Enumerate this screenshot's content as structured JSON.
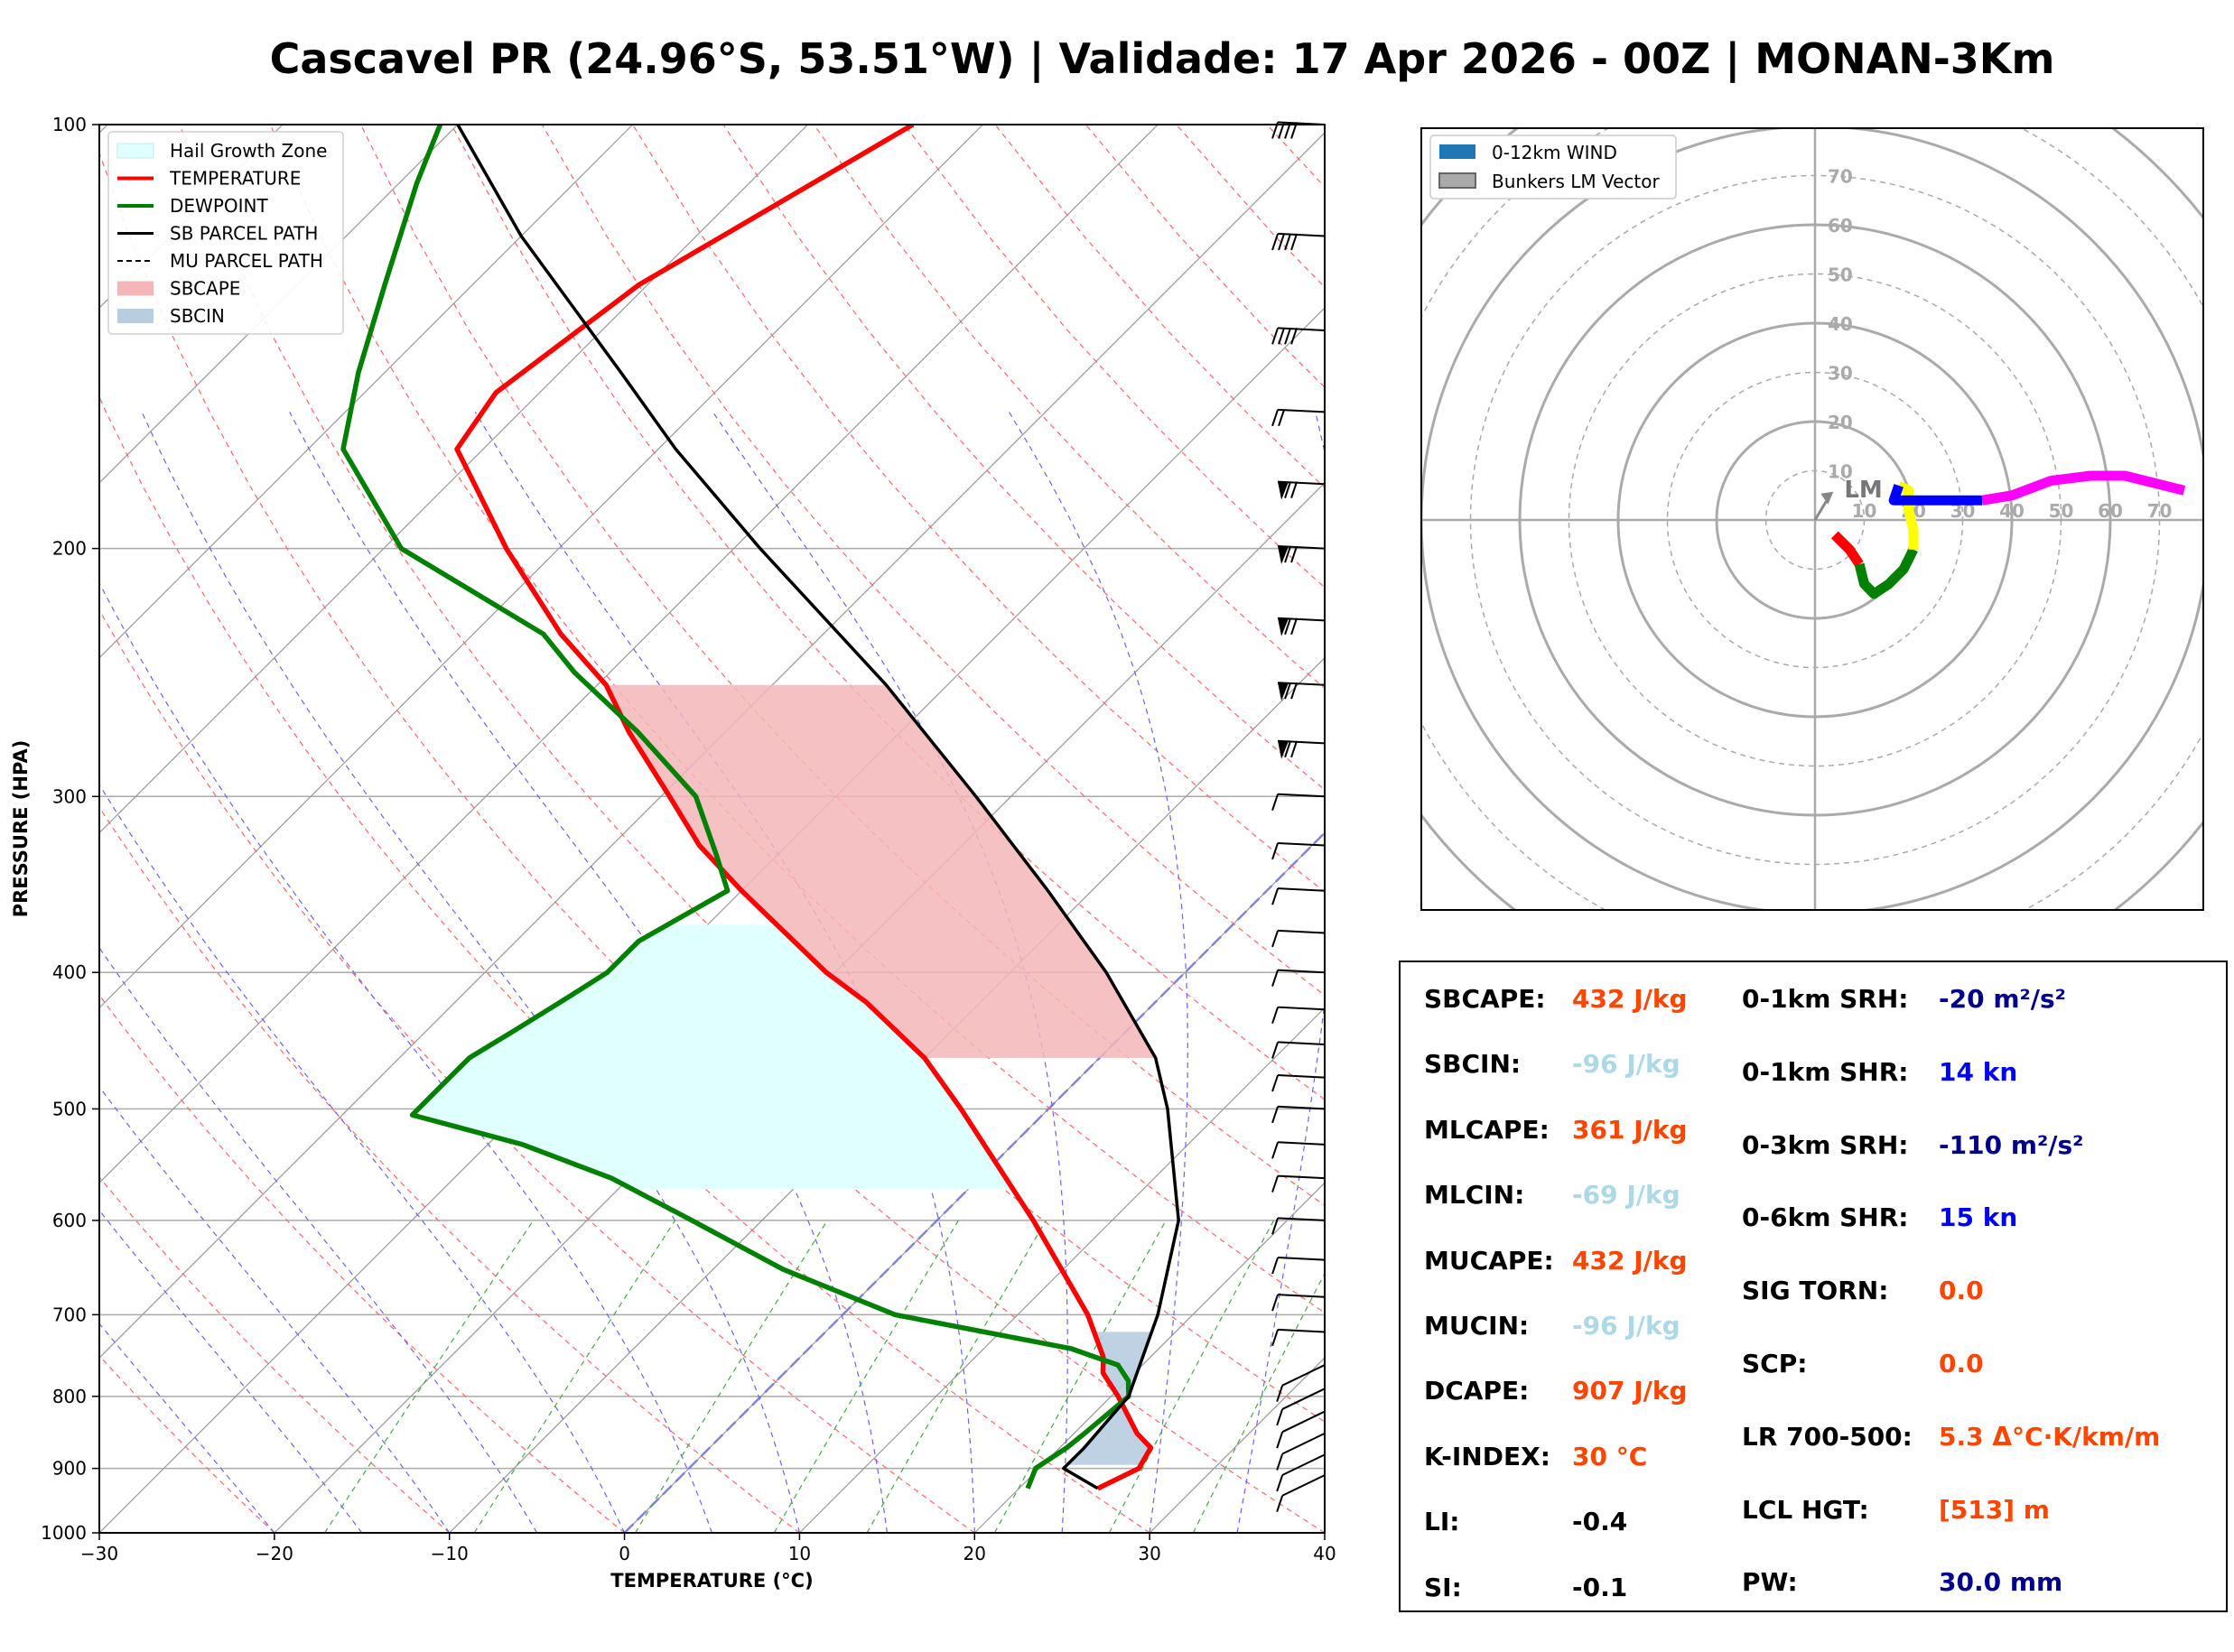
{
  "title": "Cascavel PR (24.96°S, 53.51°W) | Validade: 17 Apr 2026 - 00Z | MONAN-3Km",
  "colors": {
    "temperature": "#ff0000",
    "dewpoint": "#008000",
    "parcel": "#000000",
    "sbcape_fill": "#f4b6b8",
    "sbcin_fill": "#b7cde0",
    "hail_fill": "#e0ffff",
    "label_red": "#ff4500",
    "label_lightblue": "#add8e6",
    "label_navy": "#00008b",
    "label_blue": "#0000ff"
  },
  "chart_data": [
    {
      "type": "line",
      "chart": "skew-t log-p",
      "xlabel": "TEMPERATURE (°C)",
      "ylabel": "PRESSURE (HPA)",
      "xlim": [
        -30,
        40
      ],
      "ylim": [
        1000,
        100
      ],
      "x_ticks": [
        -30,
        -20,
        -10,
        0,
        10,
        20,
        30,
        40
      ],
      "x_tick_labels": [
        "−30",
        "−20",
        "−10",
        "0",
        "10",
        "20",
        "30",
        "40"
      ],
      "y_ticks": [
        1000,
        900,
        800,
        700,
        600,
        500,
        400,
        300,
        200,
        100
      ],
      "legend": {
        "placement": "top-left",
        "entries": [
          "Hail Growth Zone",
          "TEMPERATURE",
          "DEWPOINT",
          "SB PARCEL PATH",
          "MU PARCEL PATH",
          "SBCAPE",
          "SBCIN"
        ]
      },
      "series": [
        {
          "name": "TEMPERATURE",
          "points": [
            [
              930,
              24.5
            ],
            [
              900,
              25.7
            ],
            [
              870,
              25.2
            ],
            [
              850,
              23.6
            ],
            [
              800,
              20.4
            ],
            [
              770,
              18.2
            ],
            [
              750,
              17.3
            ],
            [
              700,
              14.0
            ],
            [
              600,
              5.5
            ],
            [
              500,
              -5.0
            ],
            [
              460,
              -10.0
            ],
            [
              420,
              -16.5
            ],
            [
              400,
              -20.5
            ],
            [
              350,
              -30.0
            ],
            [
              325,
              -35.0
            ],
            [
              300,
              -39.5
            ],
            [
              270,
              -45.5
            ],
            [
              250,
              -49.5
            ],
            [
              230,
              -55.0
            ],
            [
              200,
              -63.0
            ],
            [
              180,
              -68.5
            ],
            [
              170,
              -71.5
            ],
            [
              155,
              -72.5
            ],
            [
              130,
              -70.5
            ],
            [
              120,
              -68.5
            ],
            [
              100,
              -64.0
            ]
          ]
        },
        {
          "name": "DEWPOINT",
          "points": [
            [
              930,
              20.5
            ],
            [
              900,
              19.8
            ],
            [
              870,
              20.4
            ],
            [
              850,
              20.6
            ],
            [
              800,
              21.0
            ],
            [
              780,
              20.1
            ],
            [
              760,
              18.6
            ],
            [
              740,
              15.0
            ],
            [
              700,
              3.0
            ],
            [
              650,
              -6.0
            ],
            [
              600,
              -14.0
            ],
            [
              560,
              -21.0
            ],
            [
              530,
              -28.0
            ],
            [
              505,
              -36.0
            ],
            [
              480,
              -36.0
            ],
            [
              460,
              -36.0
            ],
            [
              440,
              -35.0
            ],
            [
              420,
              -34.0
            ],
            [
              400,
              -33.0
            ],
            [
              380,
              -33.0
            ],
            [
              350,
              -30.8
            ],
            [
              330,
              -33.5
            ],
            [
              300,
              -38.0
            ],
            [
              270,
              -45.0
            ],
            [
              245,
              -52.0
            ],
            [
              230,
              -56.0
            ],
            [
              200,
              -69.0
            ],
            [
              170,
              -78.0
            ],
            [
              150,
              -81.5
            ],
            [
              130,
              -85.0
            ],
            [
              110,
              -89.0
            ],
            [
              100,
              -91.0
            ]
          ]
        },
        {
          "name": "SB PARCEL PATH",
          "points": [
            [
              930,
              24.5
            ],
            [
              900,
              21.4
            ],
            [
              870,
              21.4
            ],
            [
              800,
              21.0
            ],
            [
              700,
              18.0
            ],
            [
              600,
              13.8
            ],
            [
              500,
              6.8
            ],
            [
              460,
              3.2
            ],
            [
              400,
              -4.5
            ],
            [
              350,
              -12.5
            ],
            [
              300,
              -22.0
            ],
            [
              250,
              -33.5
            ],
            [
              200,
              -48.5
            ],
            [
              170,
              -59.0
            ],
            [
              150,
              -66.5
            ],
            [
              120,
              -80.0
            ],
            [
              100,
              -90.0
            ]
          ]
        }
      ],
      "shaded_regions": [
        "Hail Growth Zone",
        "SBCAPE",
        "SBCIN"
      ],
      "wind_barbs": "right-edge column"
    },
    {
      "type": "line",
      "chart": "hodograph",
      "range_ring_labels": [
        "10",
        "20",
        "30",
        "40",
        "50",
        "60",
        "70"
      ],
      "legend": {
        "placement": "top-left",
        "entries": [
          "0-12km WIND",
          "Bunkers LM Vector"
        ]
      },
      "annotation": "LM",
      "bunkers_lm": [
        3,
        5
      ],
      "segments": [
        {
          "color": "#ff0000",
          "points": [
            [
              4,
              -3
            ],
            [
              7,
              -6
            ],
            [
              9,
              -9
            ]
          ]
        },
        {
          "color": "#008000",
          "points": [
            [
              9,
              -9
            ],
            [
              10,
              -13
            ],
            [
              12,
              -15
            ],
            [
              15,
              -13
            ],
            [
              18,
              -10
            ],
            [
              20,
              -6
            ]
          ]
        },
        {
          "color": "#ffff00",
          "points": [
            [
              20,
              -6
            ],
            [
              20,
              -2
            ],
            [
              19,
              2
            ],
            [
              19,
              6
            ],
            [
              17,
              7
            ]
          ]
        },
        {
          "color": "#0000ff",
          "points": [
            [
              17,
              7
            ],
            [
              16,
              4
            ],
            [
              20,
              4
            ],
            [
              26,
              4
            ],
            [
              30,
              4
            ],
            [
              34,
              4
            ]
          ]
        },
        {
          "color": "#ff00ff",
          "points": [
            [
              34,
              4
            ],
            [
              40,
              5
            ],
            [
              48,
              8
            ],
            [
              56,
              9
            ],
            [
              63,
              9
            ],
            [
              75,
              6
            ]
          ]
        }
      ]
    }
  ],
  "indices": {
    "left": [
      {
        "label": "SBCAPE:",
        "value": "432 J/kg",
        "color": "#ff4500"
      },
      {
        "label": "SBCIN:",
        "value": "-96 J/kg",
        "color": "#add8e6"
      },
      {
        "label": "MLCAPE:",
        "value": "361 J/kg",
        "color": "#ff4500"
      },
      {
        "label": "MLCIN:",
        "value": "-69 J/kg",
        "color": "#add8e6"
      },
      {
        "label": "MUCAPE:",
        "value": "432 J/kg",
        "color": "#ff4500"
      },
      {
        "label": "MUCIN:",
        "value": "-96 J/kg",
        "color": "#add8e6"
      },
      {
        "label": "DCAPE:",
        "value": "907 J/kg",
        "color": "#ff4500"
      },
      {
        "label": "K-INDEX:",
        "value": "30 °C",
        "color": "#ff4500"
      },
      {
        "label": "LI:",
        "value": "-0.4",
        "color": "#000000"
      },
      {
        "label": "SI:",
        "value": "-0.1",
        "color": "#000000"
      }
    ],
    "right": [
      {
        "label": "0-1km SRH:",
        "value": "-20 m²/s²",
        "color": "#00008b"
      },
      {
        "label": "0-1km SHR:",
        "value": "14 kn",
        "color": "#0000ff"
      },
      {
        "label": "0-3km SRH:",
        "value": "-110 m²/s²",
        "color": "#00008b"
      },
      {
        "label": "0-6km SHR:",
        "value": "15 kn",
        "color": "#0000ff"
      },
      {
        "label": "SIG TORN:",
        "value": "0.0",
        "color": "#ff4500"
      },
      {
        "label": "SCP:",
        "value": "0.0",
        "color": "#ff4500"
      },
      {
        "label": "LR 700-500:",
        "value": "5.3 Δ°C·K/km/m",
        "color": "#ff4500"
      },
      {
        "label": "LCL HGT:",
        "value": "[513] m",
        "color": "#ff4500"
      },
      {
        "label": "PW:",
        "value": "30.0 mm",
        "color": "#00008b"
      }
    ]
  }
}
